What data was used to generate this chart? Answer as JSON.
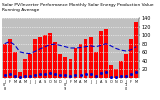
{
  "title": "Solar PV/Inverter Performance Monthly Solar Energy Production Value Running Average",
  "bar_values": [
    80,
    90,
    60,
    15,
    45,
    55,
    90,
    95,
    100,
    105,
    85,
    55,
    50,
    45,
    70,
    80,
    90,
    95,
    60,
    110,
    115,
    30,
    20,
    40,
    55,
    90,
    130
  ],
  "dot_values": [
    8,
    10,
    5,
    2,
    5,
    4,
    8,
    9,
    10,
    11,
    9,
    6,
    6,
    4,
    7,
    8,
    9,
    10,
    5,
    12,
    13,
    3,
    2,
    4,
    5,
    10,
    14
  ],
  "running_avg": [
    80,
    85,
    77,
    61,
    58,
    57,
    62,
    68,
    73,
    78,
    79,
    76,
    73,
    70,
    70,
    71,
    73,
    75,
    73,
    76,
    80,
    75,
    69,
    65,
    63,
    66,
    73
  ],
  "bar_color": "#ff0000",
  "dot_color": "#0000cc",
  "avg_color": "#0000cc",
  "bg_color": "#ffffff",
  "plot_bg": "#c0c0c0",
  "grid_color": "#ffffff",
  "ylim": [
    0,
    140
  ],
  "yticks": [
    20,
    40,
    60,
    80,
    100,
    120,
    140
  ],
  "ylabel_fontsize": 3.5,
  "title_fontsize": 3.2,
  "xlabel_fontsize": 2.5,
  "n_bars": 27
}
